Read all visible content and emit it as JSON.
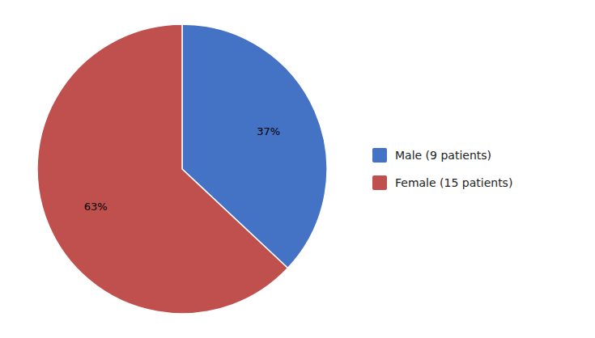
{
  "chart_data": {
    "type": "pie",
    "categories": [
      "Male (9 patients)",
      "Female (15 patients)"
    ],
    "values": [
      37,
      63
    ],
    "value_labels": [
      "37%",
      "63%"
    ],
    "colors": [
      "#4472C4",
      "#C0504D"
    ],
    "data_labels": true,
    "legend": "right"
  }
}
